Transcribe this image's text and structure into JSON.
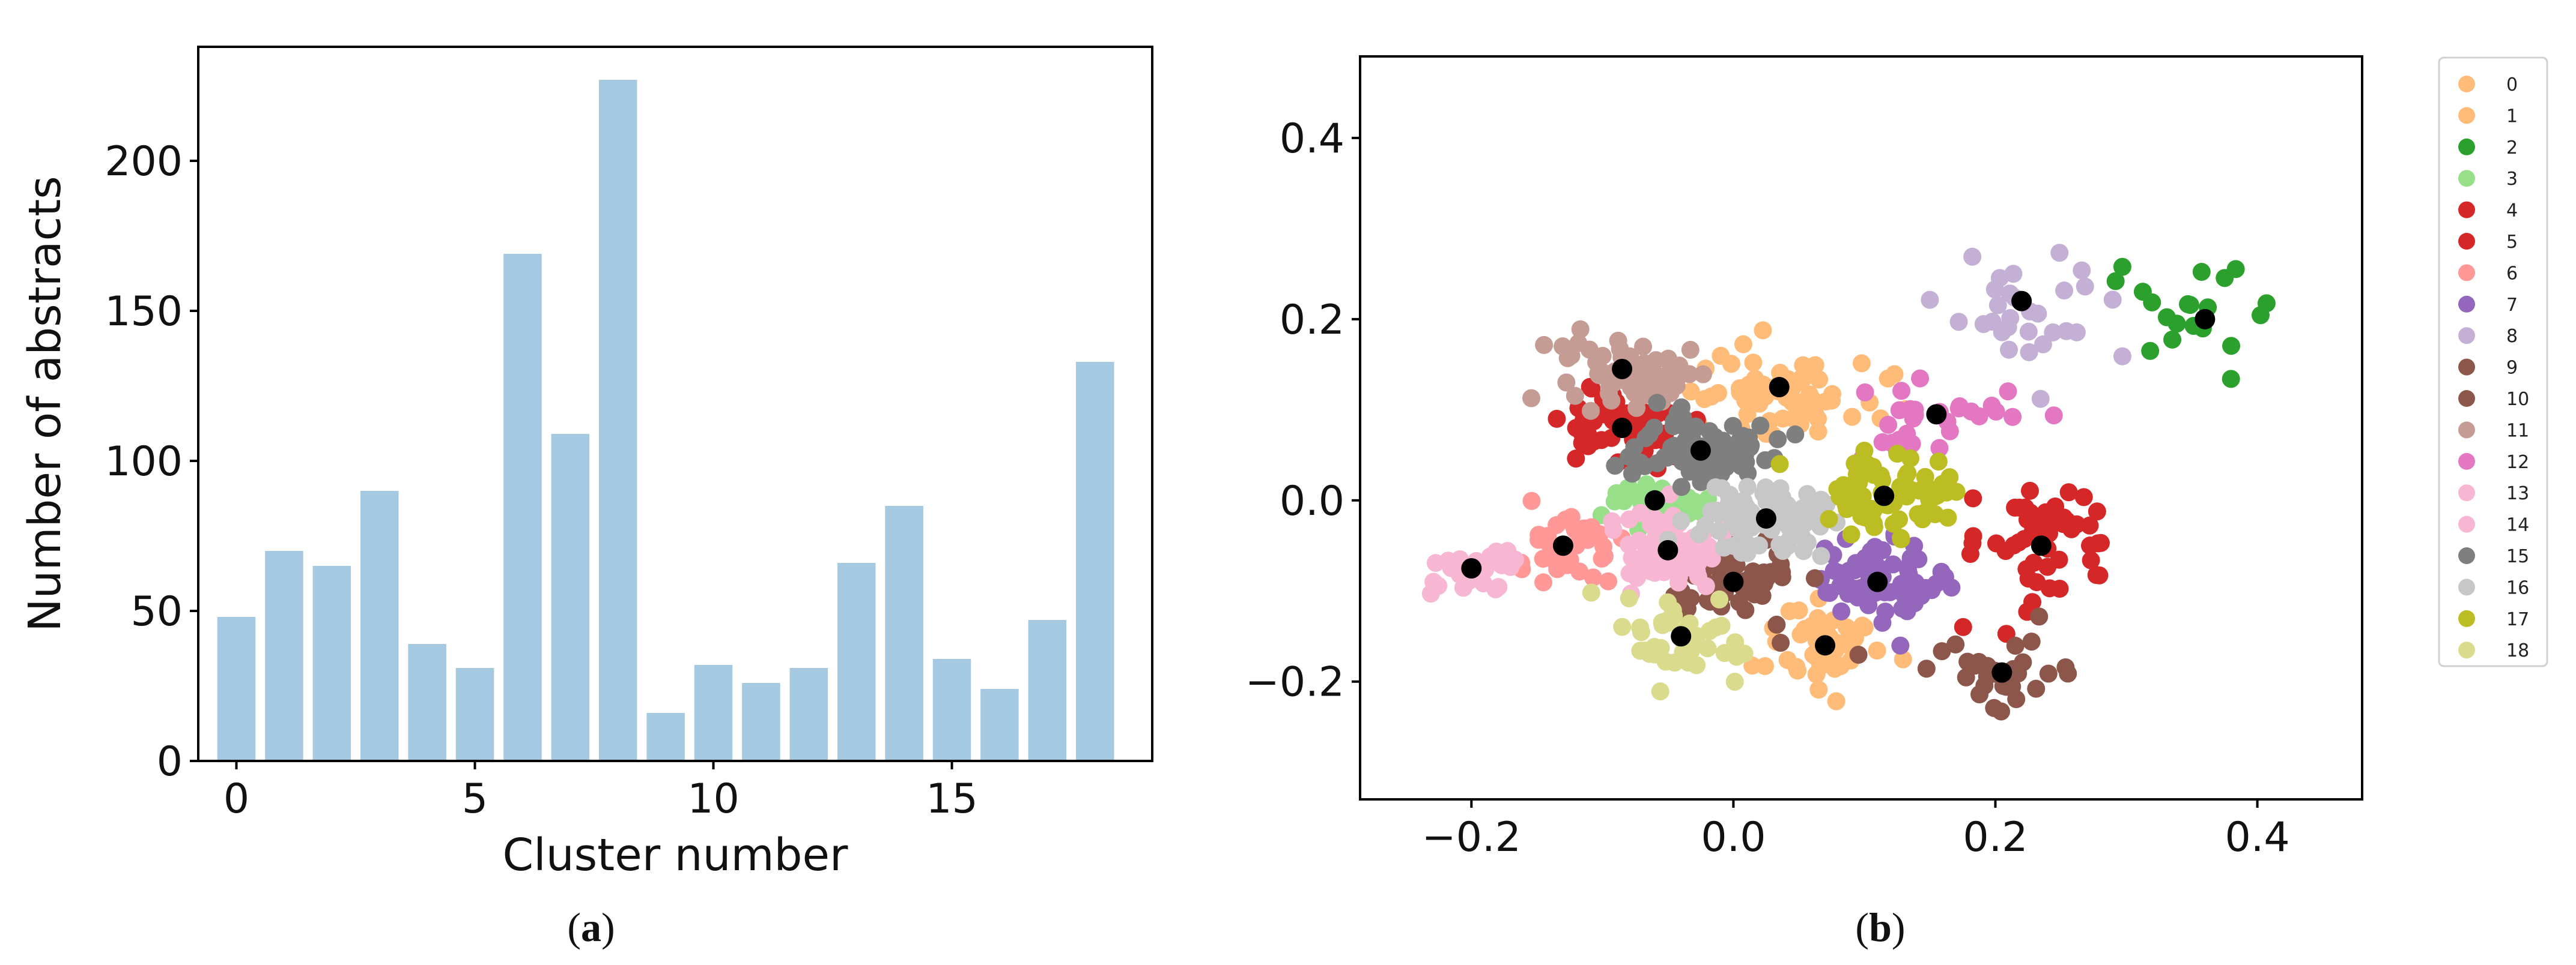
{
  "chart_data": [
    {
      "type": "bar",
      "panel_label": "(a)",
      "xlabel": "Cluster number",
      "ylabel": "Number of abstracts",
      "title": "",
      "color": "#a6c9e2",
      "categories": [
        "0",
        "1",
        "2",
        "3",
        "4",
        "5",
        "6",
        "7",
        "8",
        "9",
        "10",
        "11",
        "12",
        "13",
        "14",
        "15",
        "16",
        "17",
        "18"
      ],
      "values": [
        48,
        70,
        65,
        90,
        39,
        31,
        169,
        109,
        227,
        16,
        32,
        26,
        31,
        66,
        85,
        34,
        24,
        47,
        133
      ],
      "xlim": [
        -0.8,
        19.2
      ],
      "ylim": [
        0,
        238
      ],
      "xticks": [
        "0",
        "5",
        "10",
        "15"
      ],
      "yticks": [
        "0",
        "50",
        "100",
        "150",
        "200"
      ]
    },
    {
      "type": "scatter",
      "panel_label": "(b)",
      "xlabel": "",
      "ylabel": "",
      "title": "",
      "xlim": [
        -0.285,
        0.48
      ],
      "ylim": [
        -0.33,
        0.49
      ],
      "xticks": [
        "−0.2",
        "0.0",
        "0.2",
        "0.4"
      ],
      "yticks": [
        "−0.2",
        "0.0",
        "0.2",
        "0.4"
      ],
      "legend_position": "outside-right",
      "centroid_color": "#000000",
      "series": [
        {
          "name": "0",
          "color": "#ffbb78",
          "centroid": [
            0.07,
            -0.16
          ],
          "count": 48,
          "spread": [
            0.03,
            0.035
          ]
        },
        {
          "name": "1",
          "color": "#ffbb78",
          "centroid": [
            0.035,
            0.125
          ],
          "count": 70,
          "spread": [
            0.05,
            0.04
          ]
        },
        {
          "name": "2",
          "color": "#2ca02c",
          "centroid": [
            0.36,
            0.2
          ],
          "count": 20,
          "spread": [
            0.045,
            0.045
          ]
        },
        {
          "name": "3",
          "color": "#98df8a",
          "centroid": [
            -0.06,
            0.0
          ],
          "count": 40,
          "spread": [
            0.03,
            0.015
          ]
        },
        {
          "name": "4",
          "color": "#d62728",
          "centroid": [
            0.235,
            -0.05
          ],
          "count": 50,
          "spread": [
            0.045,
            0.045
          ]
        },
        {
          "name": "5",
          "color": "#d62728",
          "centroid": [
            -0.085,
            0.08
          ],
          "count": 60,
          "spread": [
            0.03,
            0.03
          ]
        },
        {
          "name": "6",
          "color": "#ff9896",
          "centroid": [
            -0.13,
            -0.05
          ],
          "count": 40,
          "spread": [
            0.03,
            0.03
          ]
        },
        {
          "name": "7",
          "color": "#9467bd",
          "centroid": [
            0.11,
            -0.09
          ],
          "count": 70,
          "spread": [
            0.035,
            0.03
          ]
        },
        {
          "name": "8",
          "color": "#c5b0d5",
          "centroid": [
            0.22,
            0.22
          ],
          "count": 30,
          "spread": [
            0.045,
            0.05
          ]
        },
        {
          "name": "9",
          "color": "#8c564b",
          "centroid": [
            0.205,
            -0.19
          ],
          "count": 30,
          "spread": [
            0.045,
            0.04
          ]
        },
        {
          "name": "10",
          "color": "#8c564b",
          "centroid": [
            0.0,
            -0.09
          ],
          "count": 60,
          "spread": [
            0.035,
            0.03
          ]
        },
        {
          "name": "11",
          "color": "#c49c94",
          "centroid": [
            -0.085,
            0.145
          ],
          "count": 60,
          "spread": [
            0.04,
            0.03
          ]
        },
        {
          "name": "12",
          "color": "#e377c2",
          "centroid": [
            0.155,
            0.095
          ],
          "count": 30,
          "spread": [
            0.04,
            0.035
          ]
        },
        {
          "name": "13",
          "color": "#f7b6d2",
          "centroid": [
            -0.2,
            -0.075
          ],
          "count": 25,
          "spread": [
            0.03,
            0.02
          ]
        },
        {
          "name": "14",
          "color": "#f7b6d2",
          "centroid": [
            -0.05,
            -0.055
          ],
          "count": 80,
          "spread": [
            0.035,
            0.03
          ]
        },
        {
          "name": "15",
          "color": "#7f7f7f",
          "centroid": [
            -0.025,
            0.055
          ],
          "count": 80,
          "spread": [
            0.035,
            0.03
          ]
        },
        {
          "name": "16",
          "color": "#c7c7c7",
          "centroid": [
            0.025,
            -0.02
          ],
          "count": 90,
          "spread": [
            0.04,
            0.03
          ]
        },
        {
          "name": "17",
          "color": "#bcbd22",
          "centroid": [
            0.115,
            0.005
          ],
          "count": 70,
          "spread": [
            0.04,
            0.035
          ]
        },
        {
          "name": "18",
          "color": "#dbdb8d",
          "centroid": [
            -0.04,
            -0.15
          ],
          "count": 45,
          "spread": [
            0.035,
            0.03
          ]
        }
      ]
    }
  ]
}
